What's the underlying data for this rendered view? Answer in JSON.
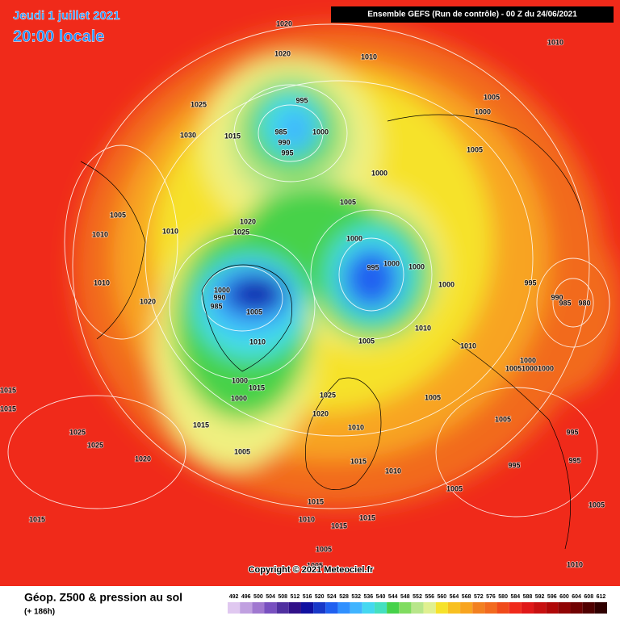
{
  "header": {
    "date": "Jeudi 1 juillet 2021",
    "time": "20:00 locale",
    "model": "Ensemble GEFS  (Run de contrôle)  -  00 Z du 24/06/2021"
  },
  "copyright": "Copyright © 2021 Meteociel.fr",
  "footer": {
    "title": "Géop. Z500 & pression au sol",
    "subtitle": "(+ 186h)"
  },
  "colorbar": {
    "labels": [
      "492",
      "496",
      "500",
      "504",
      "508",
      "512",
      "516",
      "520",
      "524",
      "528",
      "532",
      "536",
      "540",
      "544",
      "548",
      "552",
      "556",
      "560",
      "564",
      "568",
      "572",
      "576",
      "580",
      "584",
      "588",
      "592",
      "596",
      "600",
      "604",
      "608",
      "612"
    ],
    "colors": [
      "#e0c8f0",
      "#c0a0e0",
      "#a078d0",
      "#7850c0",
      "#5030a0",
      "#301088",
      "#1010a0",
      "#1838c8",
      "#2060f0",
      "#3090ff",
      "#40b4ff",
      "#44d8f0",
      "#44e0c0",
      "#46d24a",
      "#80dc60",
      "#b8e68a",
      "#e0f090",
      "#f6e22a",
      "#f8c020",
      "#f8a420",
      "#f28020",
      "#f26a1e",
      "#f04a1a",
      "#f02a1a",
      "#e01818",
      "#c81010",
      "#b00808",
      "#900404",
      "#700202",
      "#500000",
      "#300000"
    ]
  },
  "isobars": [
    "1020",
    "1020",
    "1010",
    "1010",
    "995",
    "1025",
    "1005",
    "1000",
    "1000",
    "985",
    "990",
    "995",
    "1030",
    "1015",
    "1005",
    "1000",
    "1005",
    "1005",
    "1020",
    "1025",
    "1010",
    "1010",
    "1000",
    "995",
    "1000",
    "1000",
    "1000",
    "995",
    "1010",
    "1000",
    "990",
    "985",
    "1020",
    "1005",
    "990",
    "985",
    "980",
    "1010",
    "1010",
    "1005",
    "1010",
    "1000",
    "1005",
    "1000",
    "1000",
    "1000",
    "1015",
    "1000",
    "1025",
    "1005",
    "1015",
    "1015",
    "1020",
    "1005",
    "1015",
    "1010",
    "995",
    "1025",
    "1025",
    "1005",
    "1020",
    "1015",
    "995",
    "995",
    "1010",
    "1005",
    "1015",
    "1015",
    "1010",
    "1015",
    "1005",
    "1015",
    "1005",
    "1010",
    "1005"
  ]
}
